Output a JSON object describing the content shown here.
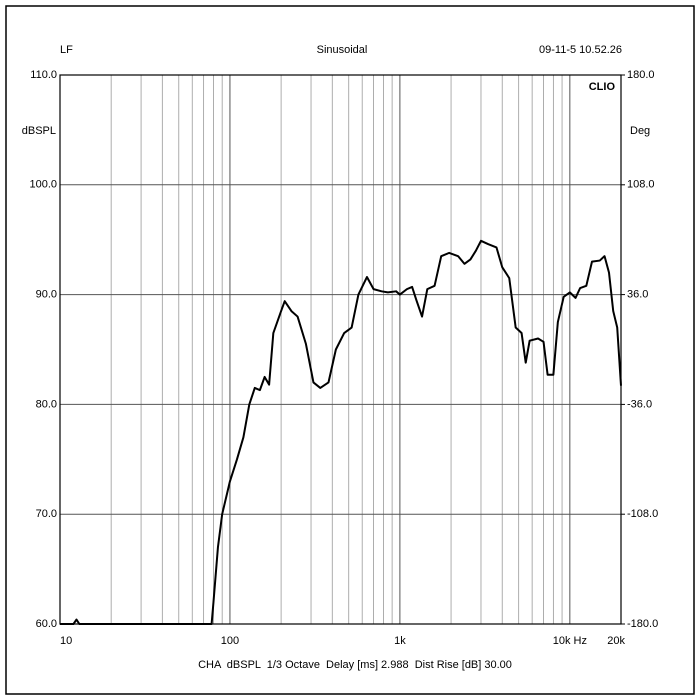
{
  "chart_data": {
    "type": "line",
    "header_left": "LF",
    "title": "Sinusoidal",
    "header_right": "09-11-5 10.52.26",
    "brand": "CLIO",
    "ylabel": "dBSPL",
    "y2label": "Deg",
    "footer": "CHA  dBSPL  1/3 Octave  Delay [ms] 2.988  Dist Rise [dB] 30.00",
    "xscale": "log",
    "xlim": [
      10,
      20000
    ],
    "xticks": [
      10,
      100,
      {
        "value": 1000,
        "label": "1k"
      },
      {
        "value": 10000,
        "label": "10k Hz"
      },
      {
        "value": 20000,
        "label": "20k"
      }
    ],
    "xminor": [
      20,
      30,
      40,
      50,
      60,
      70,
      80,
      90,
      200,
      300,
      400,
      500,
      600,
      700,
      800,
      900,
      2000,
      3000,
      4000,
      5000,
      6000,
      7000,
      8000,
      9000
    ],
    "ylim": [
      60,
      110
    ],
    "yticks": [
      {
        "value": 60,
        "label": "60.0"
      },
      {
        "value": 70,
        "label": "70.0"
      },
      {
        "value": 80,
        "label": "80.0"
      },
      {
        "value": 90,
        "label": "90.0"
      },
      {
        "value": 100,
        "label": "100.0"
      },
      {
        "value": 110,
        "label": "110.0"
      }
    ],
    "y2lim": [
      -180,
      180
    ],
    "y2ticks": [
      {
        "value": -180,
        "label": "-180.0"
      },
      {
        "value": -108,
        "label": "-108.0"
      },
      {
        "value": -36,
        "label": "-36.0"
      },
      {
        "value": 36,
        "label": "36.0"
      },
      {
        "value": 108,
        "label": "108.0"
      },
      {
        "value": 180,
        "label": "180.0"
      }
    ],
    "grid": true,
    "series": [
      {
        "name": "CHA",
        "color": "#000000",
        "x": [
          10,
          12,
          12.5,
          13,
          78,
          80,
          85,
          90,
          100,
          110,
          120,
          130,
          140,
          150,
          160,
          170,
          180,
          200,
          210,
          230,
          250,
          280,
          310,
          340,
          380,
          420,
          470,
          520,
          570,
          640,
          700,
          780,
          850,
          950,
          1000,
          1100,
          1180,
          1250,
          1350,
          1450,
          1600,
          1750,
          1950,
          2200,
          2400,
          2600,
          2800,
          3000,
          3300,
          3700,
          4000,
          4400,
          4800,
          5200,
          5500,
          5800,
          6500,
          7000,
          7400,
          8000,
          8500,
          9200,
          10000,
          10800,
          11500,
          12500,
          13500,
          15000,
          16000,
          17000,
          18000,
          19000,
          20000
        ],
        "values": [
          60,
          60,
          60.4,
          60,
          60,
          62,
          67,
          70,
          73,
          75,
          77,
          80,
          81.5,
          81.3,
          82.5,
          81.8,
          86.5,
          88.5,
          89.4,
          88.5,
          88,
          85.5,
          82,
          81.5,
          82,
          85,
          86.5,
          87,
          90,
          91.6,
          90.5,
          90.3,
          90.2,
          90.3,
          90,
          90.5,
          90.7,
          89.5,
          88,
          90.5,
          90.8,
          93.5,
          93.8,
          93.5,
          92.8,
          93.2,
          94,
          94.9,
          94.6,
          94.3,
          92.5,
          91.5,
          87,
          86.5,
          83.8,
          85.8,
          86,
          85.7,
          82.7,
          82.7,
          87.5,
          89.8,
          90.2,
          89.7,
          90.6,
          90.8,
          93,
          93.1,
          93.5,
          92,
          88.5,
          87,
          81.7
        ]
      }
    ]
  }
}
